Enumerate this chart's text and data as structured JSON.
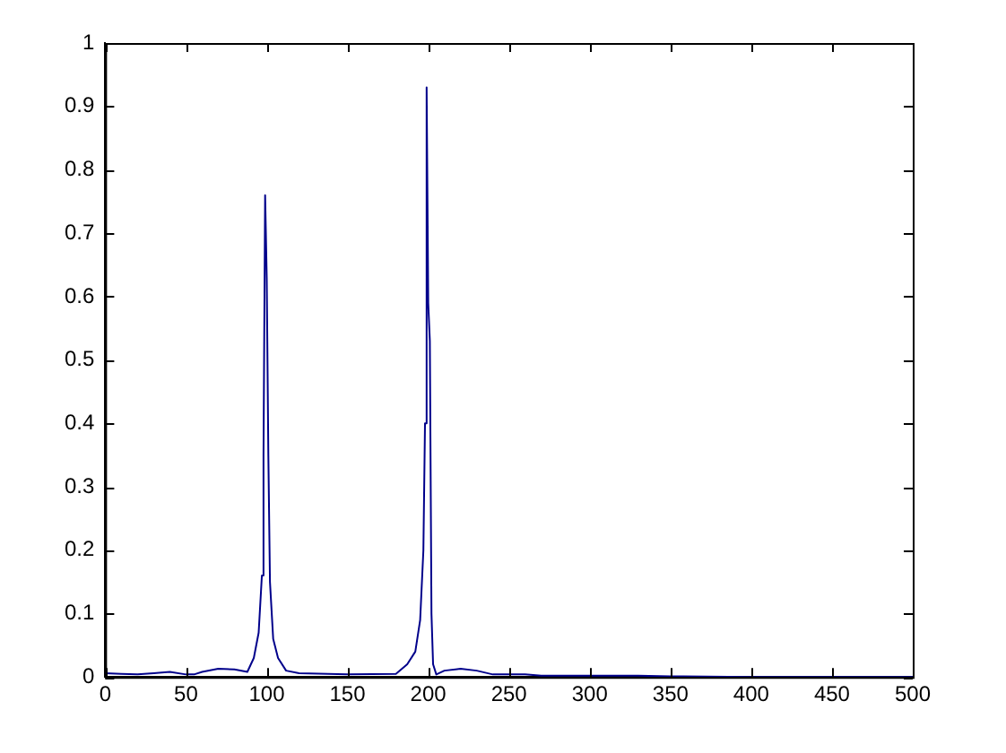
{
  "chart_data": {
    "type": "line",
    "xlim": [
      0,
      500
    ],
    "xticks": [
      0,
      50,
      100,
      150,
      200,
      250,
      300,
      350,
      400,
      450,
      500
    ],
    "ylim": [
      0,
      1
    ],
    "yticks": [
      0,
      0.1,
      0.2,
      0.3,
      0.4,
      0.5,
      0.6,
      0.7,
      0.8,
      0.9,
      1
    ],
    "grid": false,
    "legend": false,
    "marker": "none",
    "line_style": "solid",
    "series": [
      {
        "color": "#00008b",
        "x": [
          0,
          10,
          20,
          30,
          40,
          50,
          55,
          60,
          70,
          80,
          88,
          92,
          95,
          97,
          98,
          99,
          100,
          101,
          102,
          104,
          107,
          112,
          120,
          150,
          180,
          187,
          192,
          195,
          197,
          198,
          199,
          200,
          201,
          202,
          203,
          205,
          210,
          220,
          230,
          240,
          250,
          260,
          270,
          300,
          330,
          350,
          400,
          450,
          500
        ],
        "values": [
          0.006,
          0.005,
          0.004,
          0.006,
          0.008,
          0.004,
          0.004,
          0.008,
          0.013,
          0.012,
          0.008,
          0.03,
          0.07,
          0.16,
          0.35,
          0.76,
          0.63,
          0.35,
          0.15,
          0.06,
          0.03,
          0.01,
          0.006,
          0.004,
          0.005,
          0.02,
          0.04,
          0.09,
          0.2,
          0.4,
          0.93,
          0.59,
          0.53,
          0.1,
          0.02,
          0.004,
          0.01,
          0.013,
          0.01,
          0.004,
          0.004,
          0.004,
          0.002,
          0.002,
          0.002,
          0.001,
          0,
          0,
          0
        ]
      }
    ]
  }
}
